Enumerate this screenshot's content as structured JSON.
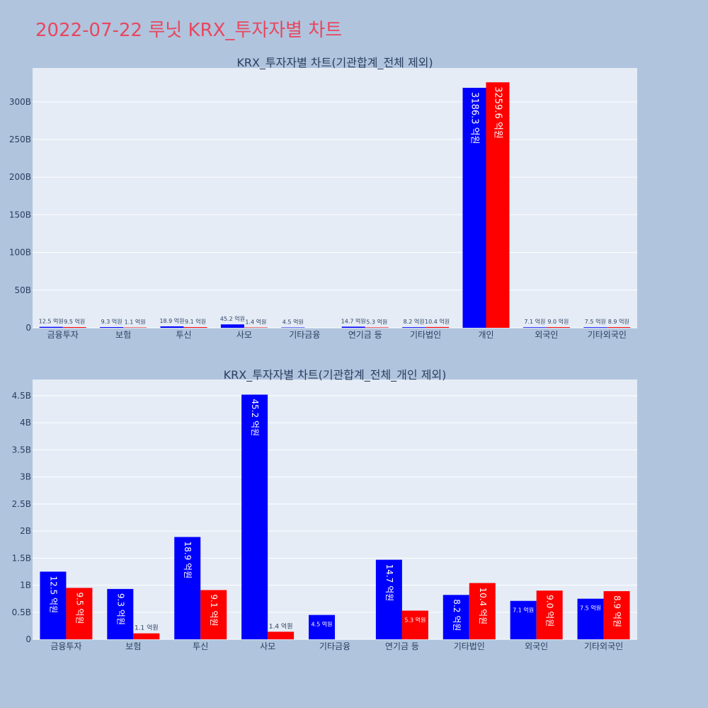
{
  "page": {
    "title": "2022-07-22 루닛 KRX_투자자별 차트",
    "background": "#b0c4de"
  },
  "colors": {
    "title": "#e8475f",
    "plot_bg": "#e5ecf6",
    "grid": "#ffffff",
    "text": "#2a3f5f",
    "series_a": "#0000ff",
    "series_b": "#ff0000"
  },
  "chart_data": [
    {
      "type": "bar",
      "title": "KRX_투자자별 차트(기관합계_전체 제외)",
      "categories": [
        "금융투자",
        "보험",
        "투신",
        "사모",
        "기타금융",
        "연기금 등",
        "기타법인",
        "개인",
        "외국인",
        "기타외국인"
      ],
      "series": [
        {
          "color": "#0000ff",
          "values": [
            1250000000,
            930000000,
            1890000000,
            4520000000,
            450000000,
            1470000000,
            820000000,
            318630000000,
            710000000,
            750000000
          ],
          "labels": [
            "12.5 억원",
            "9.3 억원",
            "18.9 억원",
            "45.2 억원",
            "4.5 억원",
            "14.7 억원",
            "8.2 억원",
            "3186.3 억원",
            "7.1 억원",
            "7.5 억원"
          ]
        },
        {
          "color": "#ff0000",
          "values": [
            950000000,
            110000000,
            910000000,
            140000000,
            null,
            530000000,
            1040000000,
            325960000000,
            900000000,
            890000000
          ],
          "labels": [
            "9.5 억원",
            "1.1 억원",
            "9.1 억원",
            "1.4 억원",
            "",
            "5.3 억원",
            "10.4 억원",
            "3259.6 억원",
            "9.0 억원",
            "8.9 억원"
          ]
        }
      ],
      "ylim": [
        0,
        345000000000
      ],
      "yticks": [
        0,
        50000000000,
        100000000000,
        150000000000,
        200000000000,
        250000000000,
        300000000000
      ],
      "ytick_labels": [
        "0",
        "50B",
        "100B",
        "150B",
        "200B",
        "250B",
        "300B"
      ],
      "grid": true,
      "legend": "none"
    },
    {
      "type": "bar",
      "title": "KRX_투자자별 차트(기관합계_전체_개인 제외)",
      "categories": [
        "금융투자",
        "보험",
        "투신",
        "사모",
        "기타금융",
        "연기금 등",
        "기타법인",
        "외국인",
        "기타외국인"
      ],
      "series": [
        {
          "color": "#0000ff",
          "values": [
            1250000000,
            930000000,
            1890000000,
            4520000000,
            450000000,
            1470000000,
            820000000,
            710000000,
            750000000
          ],
          "labels": [
            "12.5 억원",
            "9.3 억원",
            "18.9 억원",
            "45.2 억원",
            "4.5 억원",
            "14.7 억원",
            "8.2 억원",
            "7.1 억원",
            "7.5 억원"
          ]
        },
        {
          "color": "#ff0000",
          "values": [
            950000000,
            110000000,
            910000000,
            140000000,
            null,
            530000000,
            1040000000,
            900000000,
            890000000
          ],
          "labels": [
            "9.5 억원",
            "1.1 억원",
            "9.1 억원",
            "1.4 억원",
            "",
            "5.3 억원",
            "10.4 억원",
            "9.0 억원",
            "8.9 억원"
          ]
        }
      ],
      "ylim": [
        0,
        4800000000
      ],
      "yticks": [
        0,
        500000000,
        1000000000,
        1500000000,
        2000000000,
        2500000000,
        3000000000,
        3500000000,
        4000000000,
        4500000000
      ],
      "ytick_labels": [
        "0",
        "0.5B",
        "1B",
        "1.5B",
        "2B",
        "2.5B",
        "3B",
        "3.5B",
        "4B",
        "4.5B"
      ],
      "grid": true,
      "legend": "none"
    }
  ]
}
